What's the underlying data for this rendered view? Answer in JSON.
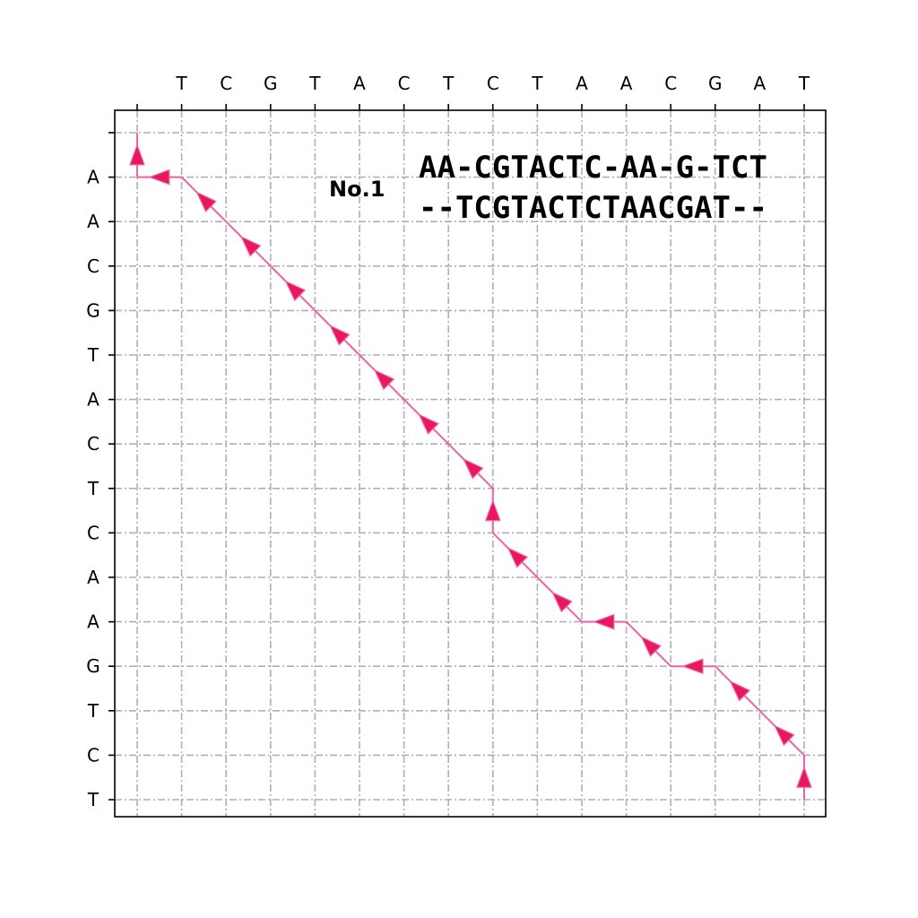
{
  "chart_data": {
    "type": "alignment-dot-plot",
    "top_sequence": [
      "T",
      "C",
      "G",
      "T",
      "A",
      "C",
      "T",
      "C",
      "T",
      "A",
      "A",
      "C",
      "G",
      "A",
      "T"
    ],
    "left_sequence": [
      "A",
      "A",
      "C",
      "G",
      "T",
      "A",
      "C",
      "T",
      "C",
      "A",
      "A",
      "G",
      "T",
      "C",
      "T"
    ],
    "label": "No.1",
    "alignment_line1": "AA-CGTACTC-AA-G-TCT",
    "alignment_line2": "--TCGTACTCTAACGAT--",
    "grid": true,
    "path_nodes": [
      [
        15,
        15
      ],
      [
        15,
        14
      ],
      [
        14,
        13
      ],
      [
        13,
        12
      ],
      [
        12,
        12
      ],
      [
        11,
        11
      ],
      [
        10,
        11
      ],
      [
        9,
        10
      ],
      [
        8,
        9
      ],
      [
        8,
        8
      ],
      [
        7,
        7
      ],
      [
        6,
        6
      ],
      [
        5,
        5
      ],
      [
        4,
        4
      ],
      [
        3,
        3
      ],
      [
        2,
        2
      ],
      [
        1,
        1
      ],
      [
        0,
        1
      ],
      [
        0,
        0
      ]
    ],
    "colors": {
      "path": "#f062a8",
      "arrow": "#e8195a",
      "grid": "#b0b0b0"
    }
  }
}
